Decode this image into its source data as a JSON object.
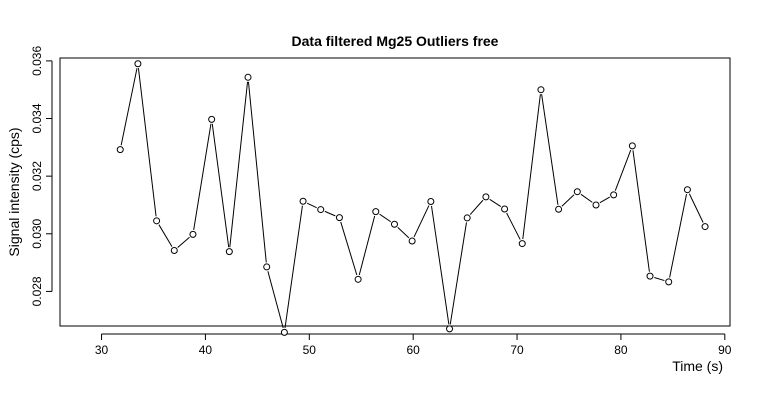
{
  "chart_data": {
    "type": "line",
    "title": "Data filtered Mg25 Outliers free",
    "xlabel": "Time (s)",
    "ylabel": "Signal intensity (cps)",
    "xlim": [
      26,
      90.5
    ],
    "ylim": [
      0.0268,
      0.0361
    ],
    "x_ticks": [
      30,
      40,
      50,
      60,
      70,
      80,
      90
    ],
    "y_ticks": [
      0.028,
      0.03,
      0.032,
      0.034,
      0.036
    ],
    "x_tick_labels": [
      "30",
      "40",
      "50",
      "60",
      "70",
      "80",
      "90"
    ],
    "y_tick_labels": [
      "0.028",
      "0.030",
      "0.032",
      "0.034",
      "0.036"
    ],
    "grid": false,
    "marker": "open-circle",
    "series": [
      {
        "x": [
          31.8,
          33.5,
          35.3,
          37.0,
          38.8,
          40.6,
          42.3,
          44.1,
          45.9,
          47.6,
          49.4,
          51.1,
          52.9,
          54.7,
          56.4,
          58.2,
          59.9,
          61.7,
          63.5,
          65.2,
          67.0,
          68.8,
          70.5,
          72.3,
          74.0,
          75.8,
          77.6,
          79.3,
          81.1,
          82.8,
          84.6,
          86.4,
          88.1
        ],
        "y": [
          0.03292,
          0.0359,
          0.03045,
          0.02942,
          0.02998,
          0.03397,
          0.02938,
          0.03543,
          0.02885,
          0.02658,
          0.03113,
          0.03084,
          0.03056,
          0.02842,
          0.03077,
          0.03033,
          0.02975,
          0.03112,
          0.0267,
          0.03055,
          0.03128,
          0.03086,
          0.02966,
          0.035,
          0.03085,
          0.03146,
          0.031,
          0.03135,
          0.03305,
          0.02853,
          0.02833,
          0.03153,
          0.03025
        ]
      }
    ]
  }
}
